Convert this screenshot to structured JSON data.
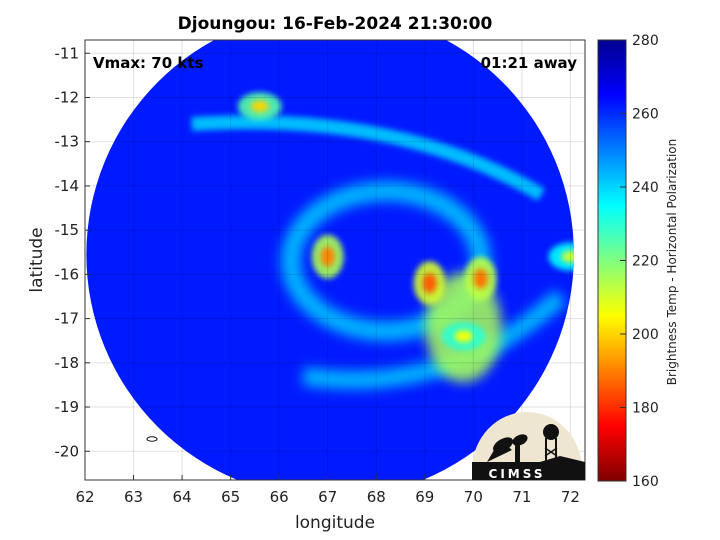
{
  "chart_data": {
    "type": "heatmap",
    "title": "Djoungou: 16-Feb-2024 21:30:00",
    "xlabel": "longitude",
    "ylabel": "latitude",
    "xlim": [
      62,
      72.3
    ],
    "ylim": [
      -20.65,
      -10.7
    ],
    "xticks": [
      "62",
      "63",
      "64",
      "65",
      "66",
      "67",
      "68",
      "69",
      "70",
      "71",
      "72"
    ],
    "yticks": [
      "-11",
      "-12",
      "-13",
      "-14",
      "-15",
      "-16",
      "-17",
      "-18",
      "-19",
      "-20"
    ],
    "grid": true,
    "annotation_left": "Vmax: 70 kts",
    "annotation_right": "01:21 away",
    "colorbar": {
      "label": "Brightness Temp - Horizontal Polarization",
      "min": 160,
      "max": 280,
      "ticks": [
        "280",
        "260",
        "240",
        "220",
        "200",
        "180",
        "160"
      ],
      "colormap": [
        "#800000",
        "#ff0000",
        "#ff8000",
        "#ffff00",
        "#80ff80",
        "#00ffff",
        "#0080ff",
        "#0000ff",
        "#00008f"
      ]
    },
    "swath_center": [
      67.05,
      -15.55
    ],
    "swath_radius_deg": 5.4,
    "background_value": 262,
    "features": [
      {
        "name": "eye-ring-west",
        "lon": 67.0,
        "lat": -15.6,
        "value": 190
      },
      {
        "name": "eyewall-band-east-1",
        "lon": 69.1,
        "lat": -16.2,
        "value": 185
      },
      {
        "name": "eyewall-band-east-2",
        "lon": 70.15,
        "lat": -16.1,
        "value": 188
      },
      {
        "name": "rainband-south-east",
        "lon": 69.8,
        "lat": -17.4,
        "value": 205
      },
      {
        "name": "outer-band-north",
        "lon": 65.6,
        "lat": -12.2,
        "value": 200
      },
      {
        "name": "outer-band-east",
        "lon": 72.0,
        "lat": -15.6,
        "value": 210
      }
    ]
  },
  "logo": {
    "name": "CIMSS",
    "text": "CIMSS"
  }
}
